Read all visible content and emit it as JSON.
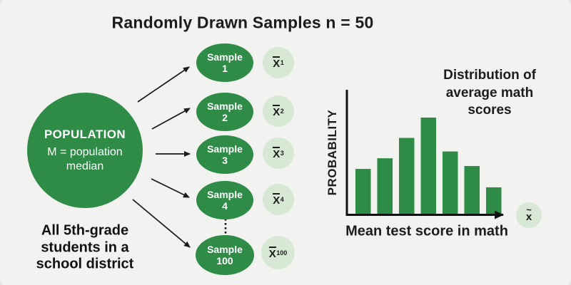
{
  "title": "Randomly Drawn Samples n = 50",
  "colors": {
    "background": "#f2f2f0",
    "green": "#2e8c47",
    "light_green_badge": "#d7e9d4",
    "text": "#1c1c1c"
  },
  "population": {
    "label": "POPULATION",
    "sublabel": "M = population\nmedian",
    "caption": "All 5th-grade\nstudents in a\nschool district"
  },
  "samples": [
    {
      "label": "Sample\n1",
      "mean_base": "X",
      "mean_sub": "1"
    },
    {
      "label": "Sample\n2",
      "mean_base": "X",
      "mean_sub": "2"
    },
    {
      "label": "Sample\n3",
      "mean_base": "X",
      "mean_sub": "3"
    },
    {
      "label": "Sample\n4",
      "mean_base": "X",
      "mean_sub": "4"
    },
    {
      "label": "Sample\n100",
      "mean_base": "X",
      "mean_sub": "100"
    }
  ],
  "chart_data": {
    "type": "bar",
    "title": "Distribution of\naverage math\nscores",
    "xlabel": "Mean test score in math",
    "ylabel": "PROBABILITY",
    "x_end_symbol": {
      "accent": "~",
      "base": "x"
    },
    "categories": [
      "",
      "",
      "",
      "",
      "",
      "",
      ""
    ],
    "values": [
      0.47,
      0.58,
      0.79,
      1.0,
      0.65,
      0.5,
      0.28
    ],
    "ylim": [
      0,
      1
    ],
    "grid": false,
    "legend": false,
    "bar_color": "#2e8c47"
  }
}
